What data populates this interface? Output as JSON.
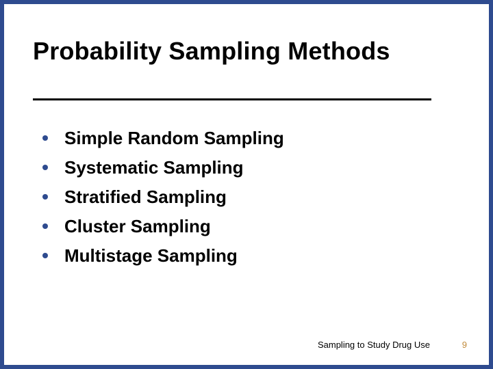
{
  "slide": {
    "title": "Probability Sampling Methods",
    "bullets": [
      "Simple Random Sampling",
      "Systematic Sampling",
      "Stratified Sampling",
      "Cluster Sampling",
      "Multistage Sampling"
    ],
    "footer": "Sampling to Study Drug Use",
    "page_number": "9"
  },
  "style": {
    "background_color": "#2e4b8f",
    "slide_color": "#ffffff",
    "title_color": "#000000",
    "title_fontsize": 36,
    "bullet_color": "#2e4b8f",
    "bullet_text_color": "#000000",
    "bullet_fontsize": 26,
    "divider_color": "#000000",
    "footer_color": "#000000",
    "footer_fontsize": 13,
    "page_number_color": "#c08a3a"
  }
}
